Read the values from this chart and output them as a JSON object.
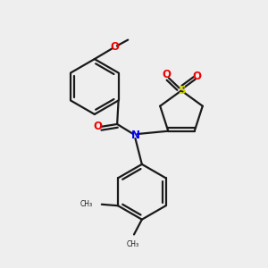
{
  "bg_color": "#eeeeee",
  "bond_color": "#1a1a1a",
  "N_color": "#0000ee",
  "O_color": "#ee0000",
  "S_color": "#cccc00",
  "line_width": 1.6,
  "dbo": 0.13,
  "xlim": [
    0,
    10
  ],
  "ylim": [
    0,
    10
  ]
}
